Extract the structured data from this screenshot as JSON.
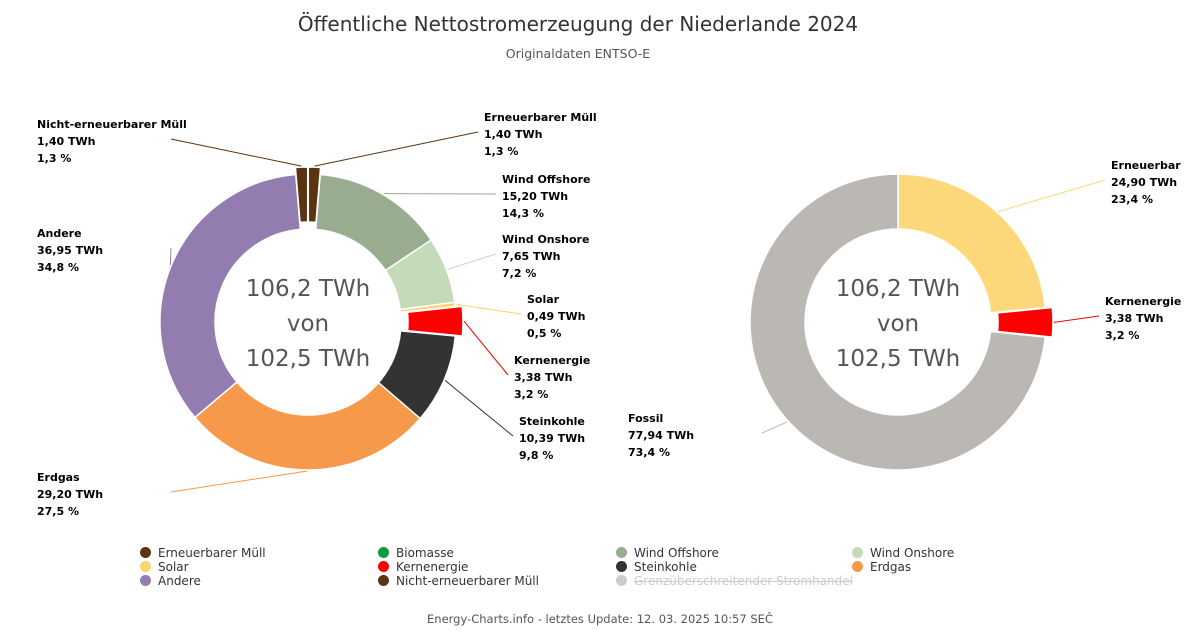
{
  "header": {
    "title": "Öffentliche Nettostromerzeugung der Niederlande 2024",
    "subtitle": "Originaldaten ENTSO-E"
  },
  "footer": "Energy-Charts.info - letztes Update: 12. 03. 2025 10:57 SEČ",
  "chart_data": [
    {
      "type": "pie",
      "donut": true,
      "center_text": [
        "106,2 TWh",
        "von",
        "102,5 TWh"
      ],
      "unit": "TWh",
      "slices": [
        {
          "name": "Erneuerbarer Müll",
          "value": 1.4,
          "value_label": "1,40 TWh",
          "percent_label": "1,3 %",
          "color": "#5a3410",
          "offset": true
        },
        {
          "name": "Wind Offshore",
          "value": 15.2,
          "value_label": "15,20 TWh",
          "percent_label": "14,3 %",
          "color": "#98ad90"
        },
        {
          "name": "Wind Onshore",
          "value": 7.65,
          "value_label": "7,65 TWh",
          "percent_label": "7,2 %",
          "color": "#c4dbba"
        },
        {
          "name": "Solar",
          "value": 0.49,
          "value_label": "0,49 TWh",
          "percent_label": "0,5 %",
          "color": "#fbd46e"
        },
        {
          "name": "Kernenergie",
          "value": 3.38,
          "value_label": "3,38 TWh",
          "percent_label": "3,2 %",
          "color": "#ff0000",
          "offset": true
        },
        {
          "name": "Steinkohle",
          "value": 10.39,
          "value_label": "10,39 TWh",
          "percent_label": "9,8 %",
          "color": "#333333"
        },
        {
          "name": "Erdgas",
          "value": 29.2,
          "value_label": "29,20 TWh",
          "percent_label": "27,5 %",
          "color": "#f7994b"
        },
        {
          "name": "Andere",
          "value": 36.95,
          "value_label": "36,95 TWh",
          "percent_label": "34,8 %",
          "color": "#927cb0"
        },
        {
          "name": "Nicht-erneuerbarer Müll",
          "value": 1.4,
          "value_label": "1,40 TWh",
          "percent_label": "1,3 %",
          "color": "#5a3410",
          "offset": true
        }
      ]
    },
    {
      "type": "pie",
      "donut": true,
      "center_text": [
        "106,2 TWh",
        "von",
        "102,5 TWh"
      ],
      "unit": "TWh",
      "slices": [
        {
          "name": "Erneuerbar",
          "value": 24.9,
          "value_label": "24,90 TWh",
          "percent_label": "23,4 %",
          "color": "#fdd87a"
        },
        {
          "name": "Kernenergie",
          "value": 3.38,
          "value_label": "3,38 TWh",
          "percent_label": "3,2 %",
          "color": "#ff0000",
          "offset": true
        },
        {
          "name": "Fossil",
          "value": 77.94,
          "value_label": "77,94 TWh",
          "percent_label": "73,4 %",
          "color": "#bbb8b4"
        }
      ]
    }
  ],
  "legend": [
    {
      "name": "Erneuerbarer Müll",
      "color": "#5a3410",
      "hidden": false
    },
    {
      "name": "Biomasse",
      "color": "#0f9a3c",
      "hidden": false
    },
    {
      "name": "Wind Offshore",
      "color": "#98ad90",
      "hidden": false
    },
    {
      "name": "Wind Onshore",
      "color": "#c4dbba",
      "hidden": false
    },
    {
      "name": "Solar",
      "color": "#fbd46e",
      "hidden": false
    },
    {
      "name": "Kernenergie",
      "color": "#ff0000",
      "hidden": false
    },
    {
      "name": "Steinkohle",
      "color": "#333333",
      "hidden": false
    },
    {
      "name": "Erdgas",
      "color": "#f7994b",
      "hidden": false
    },
    {
      "name": "Andere",
      "color": "#927cb0",
      "hidden": false
    },
    {
      "name": "Nicht-erneuerbarer Müll",
      "color": "#5a3410",
      "hidden": false
    },
    {
      "name": "Grenzüberschreitender Stromhandel",
      "color": "#cccccc",
      "hidden": true
    }
  ]
}
